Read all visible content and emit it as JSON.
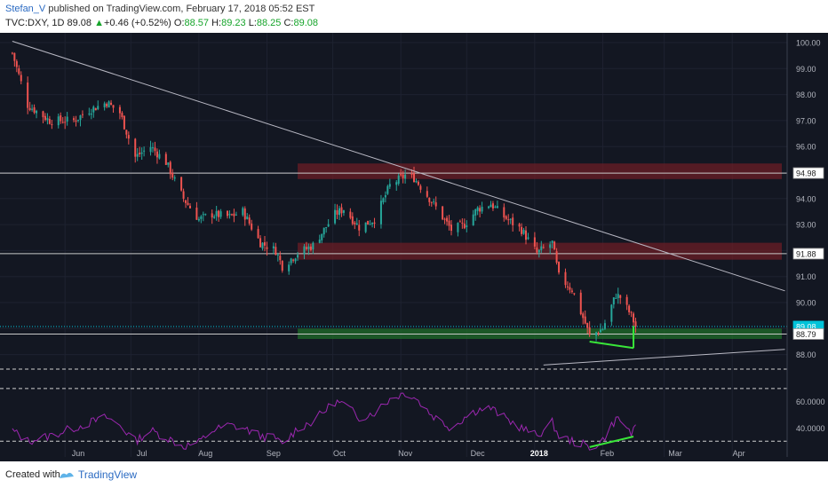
{
  "header": {
    "author": "Stefan_V",
    "published_text": "published on TradingView.com, February 17, 2018 05:52 EST",
    "symbol": "TVC:DXY, 1D",
    "last": "89.08",
    "change": "+0.46 (+0.52%)",
    "open_label": "O:",
    "open_value": "88.57",
    "high_label": "H:",
    "high_value": "89.23",
    "low_label": "L:",
    "low_value": "88.25",
    "close_label": "C:",
    "close_value": "89.08"
  },
  "footer": {
    "created_with": "Created with",
    "brand": "TradingView"
  },
  "colors": {
    "background": "#131722",
    "bull": "#26a69a",
    "bear": "#ef5350",
    "rsi": "#9c27b0",
    "zone_red": "#6b1e26",
    "zone_green": "#1f6e2a",
    "divergence": "#39e639",
    "price_badge": "#00c3d9"
  },
  "chart_data": [
    {
      "type": "candlestick",
      "title": "TVC:DXY, 1D",
      "x_ticks": [
        "Jun",
        "Jul",
        "Aug",
        "Sep",
        "Oct",
        "Nov",
        "Dec",
        "2018",
        "Feb",
        "Mar",
        "Apr"
      ],
      "y_ticks": [
        "100.00",
        "99.00",
        "98.00",
        "97.00",
        "96.00",
        "95.00",
        "94.00",
        "93.00",
        "92.00",
        "91.00",
        "90.00",
        "89.00",
        "88.00"
      ],
      "ylim": [
        87.5,
        100.3
      ],
      "price_labels": [
        {
          "text": "94.98",
          "value": 94.98,
          "style": "line"
        },
        {
          "text": "91.88",
          "value": 91.88,
          "style": "line"
        },
        {
          "text": "89.08",
          "value": 89.08,
          "style": "last"
        },
        {
          "text": "88.79",
          "value": 88.79,
          "style": "line"
        }
      ],
      "zones": [
        {
          "name": "resistance-upper",
          "from": 94.75,
          "to": 95.35,
          "start": "2017-09-15",
          "color": "red"
        },
        {
          "name": "resistance-lower",
          "from": 91.65,
          "to": 92.3,
          "start": "2017-09-15",
          "color": "red"
        },
        {
          "name": "support",
          "from": 88.6,
          "to": 89.0,
          "start": "2017-09-15",
          "color": "green"
        }
      ],
      "trendlines": [
        {
          "name": "falling-resistance",
          "from": {
            "date": "2017-05-08",
            "value": 100.05
          },
          "to": {
            "date": "2018-04-25",
            "value": 90.45
          }
        },
        {
          "name": "rising-support",
          "from": {
            "date": "2018-01-05",
            "value": 87.6
          },
          "to": {
            "date": "2018-04-25",
            "value": 88.2
          }
        }
      ],
      "divergence_price": [
        {
          "date": "2018-01-26",
          "value": 88.5
        },
        {
          "date": "2018-02-15",
          "value": 88.25
        }
      ],
      "anchors": [
        {
          "date": "2017-05-08",
          "value": 99.6
        },
        {
          "date": "2017-05-15",
          "value": 97.6
        },
        {
          "date": "2017-05-25",
          "value": 97.0
        },
        {
          "date": "2017-06-05",
          "value": 97.0
        },
        {
          "date": "2017-06-12",
          "value": 97.4
        },
        {
          "date": "2017-06-20",
          "value": 97.7
        },
        {
          "date": "2017-06-26",
          "value": 97.3
        },
        {
          "date": "2017-07-03",
          "value": 95.6
        },
        {
          "date": "2017-07-10",
          "value": 96.0
        },
        {
          "date": "2017-07-17",
          "value": 95.4
        },
        {
          "date": "2017-07-25",
          "value": 94.0
        },
        {
          "date": "2017-08-01",
          "value": 93.2
        },
        {
          "date": "2017-08-07",
          "value": 93.4
        },
        {
          "date": "2017-08-15",
          "value": 93.3
        },
        {
          "date": "2017-08-21",
          "value": 93.5
        },
        {
          "date": "2017-08-29",
          "value": 92.3
        },
        {
          "date": "2017-09-05",
          "value": 92.0
        },
        {
          "date": "2017-09-08",
          "value": 91.4
        },
        {
          "date": "2017-09-15",
          "value": 91.9
        },
        {
          "date": "2017-09-22",
          "value": 92.2
        },
        {
          "date": "2017-10-02",
          "value": 93.4
        },
        {
          "date": "2017-10-06",
          "value": 93.6
        },
        {
          "date": "2017-10-13",
          "value": 92.9
        },
        {
          "date": "2017-10-20",
          "value": 93.2
        },
        {
          "date": "2017-10-27",
          "value": 94.5
        },
        {
          "date": "2017-11-03",
          "value": 94.9
        },
        {
          "date": "2017-11-07",
          "value": 94.8
        },
        {
          "date": "2017-11-15",
          "value": 93.9
        },
        {
          "date": "2017-11-24",
          "value": 92.8
        },
        {
          "date": "2017-11-30",
          "value": 93.0
        },
        {
          "date": "2017-12-06",
          "value": 93.6
        },
        {
          "date": "2017-12-12",
          "value": 93.8
        },
        {
          "date": "2017-12-18",
          "value": 93.3
        },
        {
          "date": "2017-12-26",
          "value": 92.8
        },
        {
          "date": "2018-01-02",
          "value": 91.9
        },
        {
          "date": "2018-01-09",
          "value": 92.3
        },
        {
          "date": "2018-01-12",
          "value": 91.0
        },
        {
          "date": "2018-01-18",
          "value": 90.5
        },
        {
          "date": "2018-01-24",
          "value": 89.2
        },
        {
          "date": "2018-01-26",
          "value": 88.7
        },
        {
          "date": "2018-02-01",
          "value": 89.0
        },
        {
          "date": "2018-02-07",
          "value": 90.3
        },
        {
          "date": "2018-02-09",
          "value": 90.2
        },
        {
          "date": "2018-02-14",
          "value": 89.5
        },
        {
          "date": "2018-02-16",
          "value": 89.08
        }
      ]
    },
    {
      "type": "line",
      "title": "RSI",
      "y_ticks": [
        "60.0000",
        "40.0000"
      ],
      "ylim": [
        18,
        82
      ],
      "levels": [
        70,
        30
      ],
      "divergence_rsi": [
        {
          "date": "2018-01-26",
          "value": 25.5
        },
        {
          "date": "2018-02-15",
          "value": 33.5
        }
      ],
      "anchors": [
        {
          "date": "2017-05-08",
          "value": 38
        },
        {
          "date": "2017-05-15",
          "value": 30
        },
        {
          "date": "2017-05-25",
          "value": 34
        },
        {
          "date": "2017-06-05",
          "value": 40
        },
        {
          "date": "2017-06-12",
          "value": 44
        },
        {
          "date": "2017-06-20",
          "value": 48
        },
        {
          "date": "2017-06-26",
          "value": 42
        },
        {
          "date": "2017-07-03",
          "value": 30
        },
        {
          "date": "2017-07-10",
          "value": 38
        },
        {
          "date": "2017-07-17",
          "value": 33
        },
        {
          "date": "2017-07-25",
          "value": 26
        },
        {
          "date": "2017-08-01",
          "value": 29
        },
        {
          "date": "2017-08-07",
          "value": 38
        },
        {
          "date": "2017-08-15",
          "value": 42
        },
        {
          "date": "2017-08-21",
          "value": 40
        },
        {
          "date": "2017-08-29",
          "value": 34
        },
        {
          "date": "2017-09-05",
          "value": 32
        },
        {
          "date": "2017-09-08",
          "value": 27
        },
        {
          "date": "2017-09-15",
          "value": 40
        },
        {
          "date": "2017-09-22",
          "value": 45
        },
        {
          "date": "2017-10-02",
          "value": 60
        },
        {
          "date": "2017-10-06",
          "value": 58
        },
        {
          "date": "2017-10-13",
          "value": 48
        },
        {
          "date": "2017-10-20",
          "value": 52
        },
        {
          "date": "2017-10-27",
          "value": 62
        },
        {
          "date": "2017-11-03",
          "value": 67
        },
        {
          "date": "2017-11-07",
          "value": 64
        },
        {
          "date": "2017-11-15",
          "value": 50
        },
        {
          "date": "2017-11-24",
          "value": 40
        },
        {
          "date": "2017-11-30",
          "value": 48
        },
        {
          "date": "2017-12-06",
          "value": 54
        },
        {
          "date": "2017-12-12",
          "value": 55
        },
        {
          "date": "2017-12-18",
          "value": 48
        },
        {
          "date": "2017-12-26",
          "value": 40
        },
        {
          "date": "2018-01-02",
          "value": 34
        },
        {
          "date": "2018-01-09",
          "value": 44
        },
        {
          "date": "2018-01-12",
          "value": 34
        },
        {
          "date": "2018-01-18",
          "value": 30
        },
        {
          "date": "2018-01-24",
          "value": 27
        },
        {
          "date": "2018-01-26",
          "value": 24
        },
        {
          "date": "2018-02-01",
          "value": 31
        },
        {
          "date": "2018-02-07",
          "value": 47
        },
        {
          "date": "2018-02-09",
          "value": 46
        },
        {
          "date": "2018-02-14",
          "value": 36
        },
        {
          "date": "2018-02-16",
          "value": 39
        }
      ]
    }
  ]
}
